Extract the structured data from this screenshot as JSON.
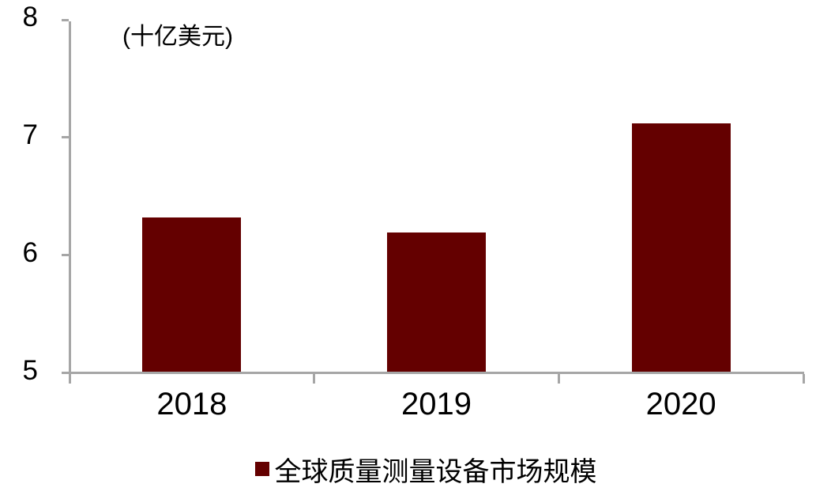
{
  "chart_data": {
    "type": "bar",
    "title": "",
    "unit_label": "(十亿美元)",
    "categories": [
      "2018",
      "2019",
      "2020"
    ],
    "series": [
      {
        "name": "全球质量测量设备市场规模",
        "color": "#640000",
        "values": [
          6.32,
          6.19,
          7.12
        ]
      }
    ],
    "ylabel": "",
    "xlabel": "",
    "ylim": [
      5,
      8
    ],
    "yticks": [
      "5",
      "6",
      "7",
      "8"
    ],
    "grid": false,
    "legend_position": "bottom-center",
    "axis_color": "#A6A6A6",
    "text_color": "#000000",
    "background_color": "#FFFFFF"
  }
}
